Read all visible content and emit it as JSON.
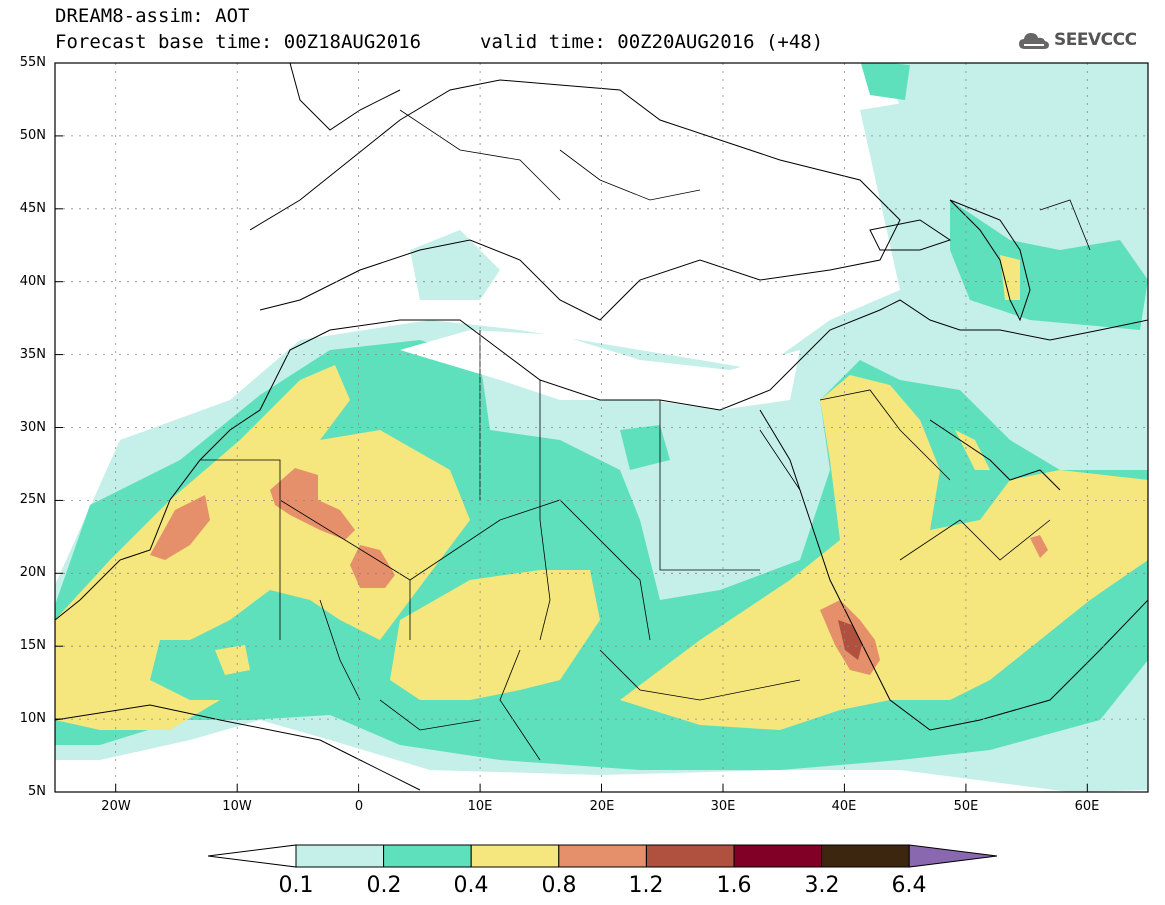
{
  "header": {
    "model_line": "DREAM8-assim: AOT",
    "base_time": "Forecast base time: 00Z18AUG2016",
    "valid_time": "valid time: 00Z20AUG2016 (+48)",
    "logo_text": "SEEVCCC"
  },
  "map": {
    "lat_labels": [
      "55N",
      "50N",
      "45N",
      "40N",
      "35N",
      "30N",
      "25N",
      "20N",
      "15N",
      "10N",
      "5N"
    ],
    "lon_labels": [
      "20W",
      "10W",
      "0",
      "10E",
      "20E",
      "30E",
      "40E",
      "50E",
      "60E"
    ],
    "gridlines": true,
    "extent": {
      "lon": [
        -25,
        65
      ],
      "lat": [
        5,
        55
      ]
    }
  },
  "colorbar": {
    "levels": [
      "0.1",
      "0.2",
      "0.4",
      "0.8",
      "1.2",
      "1.6",
      "3.2",
      "6.4"
    ],
    "colors": [
      "#ffffff",
      "#c5efe9",
      "#5fe0bc",
      "#f5e77d",
      "#e5906a",
      "#b0503f",
      "#800026",
      "#3d2610",
      "#8a68b0"
    ]
  },
  "colors": {
    "c1": "#c5efe9",
    "c2": "#5fe0bc",
    "c3": "#f5e77d",
    "c4": "#e5906a",
    "c5": "#b0503f"
  }
}
